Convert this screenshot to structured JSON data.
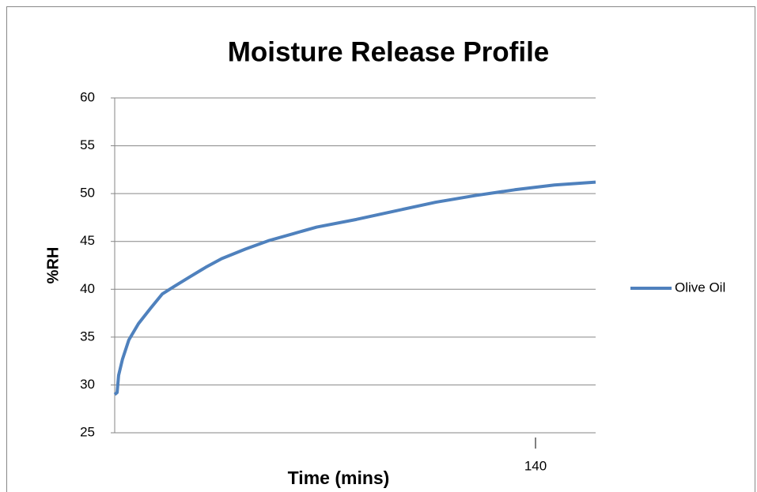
{
  "chart_data": {
    "type": "line",
    "title": "Moisture Release Profile",
    "x_label": "Time (mins)",
    "y_label": "%RH",
    "x": [
      0,
      0.8,
      1.3,
      2.6,
      4.7,
      7.9,
      11.9,
      15.8,
      19.8,
      25,
      30.3,
      35.6,
      43.5,
      51.4,
      59.3,
      67.2,
      80.4,
      93.6,
      106.8,
      120,
      133.1,
      146.3,
      160
    ],
    "series": [
      {
        "name": "Olive Oil",
        "color": "#4f81bd",
        "values": [
          29.0,
          29.2,
          31.0,
          32.7,
          34.7,
          36.4,
          38.0,
          39.5,
          40.3,
          41.3,
          42.3,
          43.2,
          44.2,
          45.1,
          45.8,
          46.5,
          47.3,
          48.2,
          49.1,
          49.8,
          50.4,
          50.9,
          51.2
        ]
      }
    ],
    "xlim": [
      0,
      160
    ],
    "xticks": [
      140
    ],
    "ylim": [
      25,
      60
    ],
    "yticks": [
      25,
      30,
      35,
      40,
      45,
      50,
      55,
      60
    ],
    "grid": true,
    "legend": "right"
  }
}
